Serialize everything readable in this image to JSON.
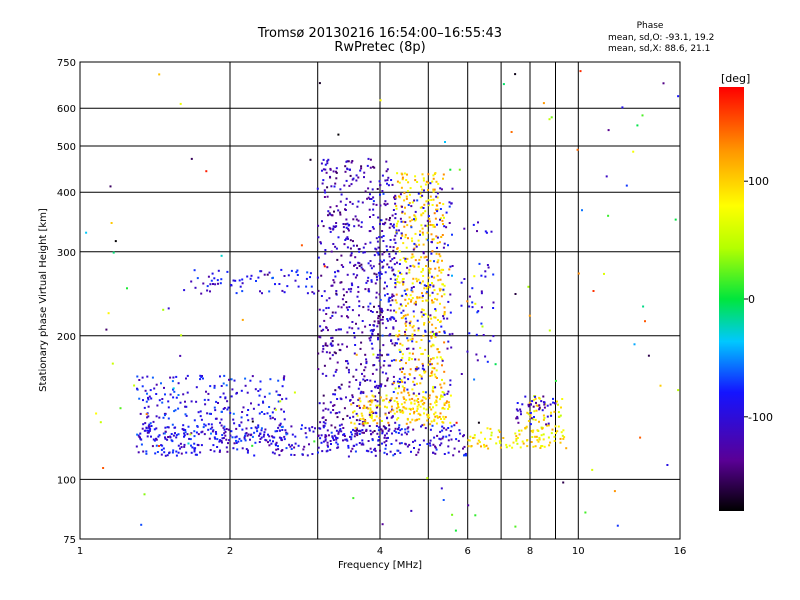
{
  "title": {
    "line1": "Tromsø 20130216 16:54:00–16:55:43",
    "line2": "RwPretec (8p)"
  },
  "stats": {
    "header": "Phase",
    "o_mode": "mean, sd,O: -93.1, 19.2",
    "x_mode": "mean, sd,X: 88.6, 21.1"
  },
  "chart_data": {
    "type": "scatter",
    "xlabel": "Frequency [MHz]",
    "ylabel": "Stationary phase Virtual Height [km]",
    "xscale": "log",
    "yscale": "log",
    "xlim": [
      1,
      16
    ],
    "ylim": [
      75,
      750
    ],
    "xticks": [
      1,
      2,
      4,
      6,
      8,
      10,
      16
    ],
    "yticks": [
      75,
      100,
      200,
      300,
      400,
      500,
      600,
      750
    ],
    "x_gridlines": [
      2,
      3,
      4,
      5,
      6,
      7,
      8,
      9,
      10
    ],
    "y_gridlines": [
      100,
      200,
      300,
      400,
      500,
      600
    ],
    "grid": true,
    "colorbar": {
      "label": "[deg]",
      "min": -180,
      "max": 180,
      "ticks": [
        100,
        0,
        -100
      ],
      "colormap": "rainbow (black-purple-blue-cyan-green-yellow-orange-red)"
    },
    "clusters": [
      {
        "name": "O-trace low band",
        "xrange": [
          1.3,
          6.0
        ],
        "yrange": [
          112,
          130
        ],
        "phase": -100,
        "points": 420
      },
      {
        "name": "O-trace low band extension",
        "xrange": [
          6.0,
          9.5
        ],
        "yrange": [
          116,
          128
        ],
        "phase": 90,
        "points": 90
      },
      {
        "name": "O-trace cusp",
        "xrange": [
          7.8,
          9.3
        ],
        "yrange": [
          125,
          150
        ],
        "phase": 80,
        "points": 50
      },
      {
        "name": "O-trace 8 MHz rise",
        "xrange": [
          7.5,
          9.0
        ],
        "yrange": [
          130,
          150
        ],
        "phase": -110,
        "points": 45
      },
      {
        "name": "low-frequency scatter",
        "xrange": [
          1.3,
          2.6
        ],
        "yrange": [
          120,
          165
        ],
        "phase": -90,
        "points": 260
      },
      {
        "name": "spread F column 3.2-4.3 MHz",
        "xrange": [
          3.0,
          4.3
        ],
        "yrange": [
          120,
          470
        ],
        "phase": -120,
        "points": 620
      },
      {
        "name": "X-mode column 4.3-5.4 MHz",
        "xrange": [
          4.3,
          5.4
        ],
        "yrange": [
          130,
          440
        ],
        "phase": 100,
        "points": 460
      },
      {
        "name": "mixed column 3.8-5.6 MHz",
        "xrange": [
          3.8,
          5.6
        ],
        "yrange": [
          150,
          420
        ],
        "phase": -100,
        "points": 260
      },
      {
        "name": "band 2.0-3.0 MHz at 260 km",
        "xrange": [
          1.6,
          3.0
        ],
        "yrange": [
          245,
          275
        ],
        "phase": -95,
        "points": 70
      },
      {
        "name": "X-mode band 4.4-5.6 MHz at 140 km",
        "xrange": [
          3.5,
          5.6
        ],
        "yrange": [
          130,
          150
        ],
        "phase": 100,
        "points": 150
      },
      {
        "name": "5.8-6.5 MHz column",
        "xrange": [
          5.8,
          6.8
        ],
        "yrange": [
          160,
          350
        ],
        "phase": -100,
        "points": 40
      },
      {
        "name": "random noise",
        "xrange": [
          1.0,
          16.0
        ],
        "yrange": [
          78,
          720
        ],
        "phase": 0,
        "points": 120
      }
    ]
  }
}
